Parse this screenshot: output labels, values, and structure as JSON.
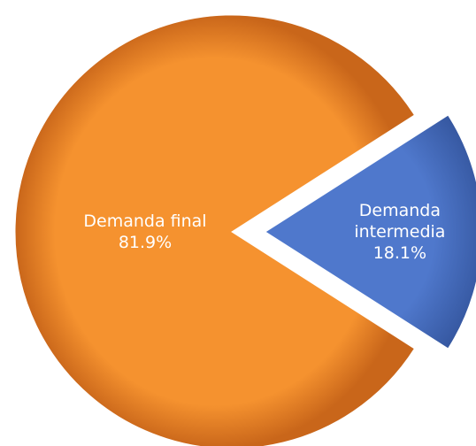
{
  "chart_data": {
    "type": "pie",
    "categories": [
      "Demanda final",
      "Demanda intermedia"
    ],
    "values": [
      81.9,
      18.1
    ],
    "value_labels": [
      "81.9%",
      "18.1%"
    ],
    "colors": [
      "#f08a2c",
      "#4a72c8"
    ]
  }
}
